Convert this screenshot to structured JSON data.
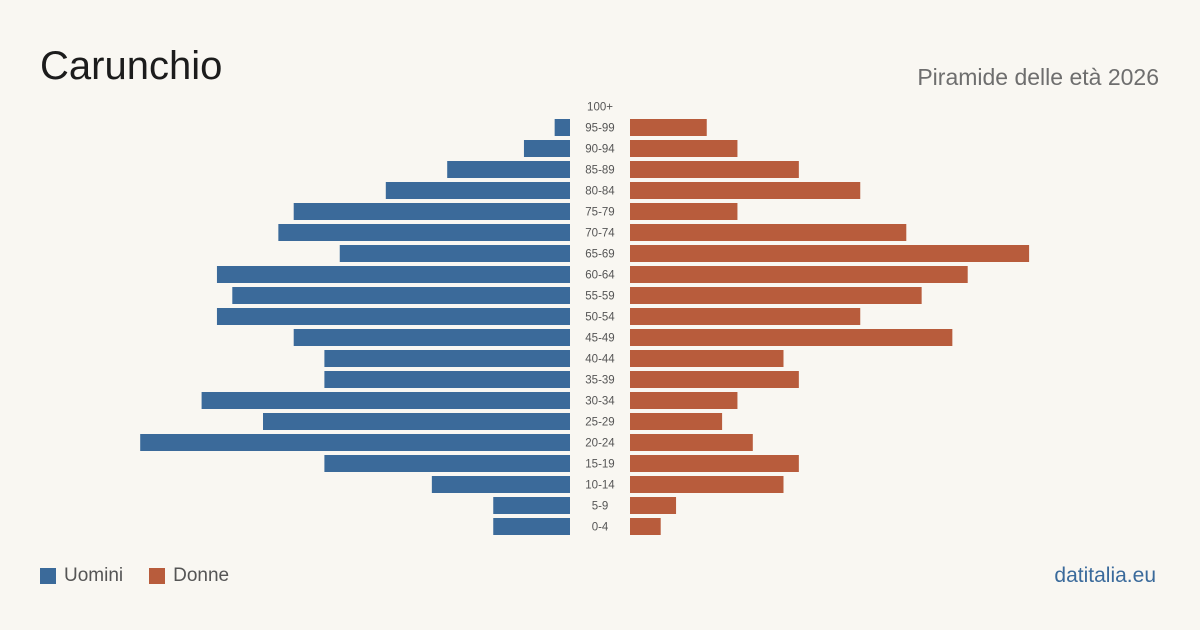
{
  "title": "Carunchio",
  "subtitle": "Piramide delle età 2026",
  "brand": "datitalia.eu",
  "colors": {
    "male": "#3b6a9a",
    "female": "#b85c3c",
    "background": "#f9f7f2"
  },
  "legend": {
    "male_label": "Uomini",
    "female_label": "Donne"
  },
  "chart_data": {
    "type": "bar",
    "orientation": "horizontal-diverging",
    "categories": [
      "100+",
      "95-99",
      "90-94",
      "85-89",
      "80-84",
      "75-79",
      "70-74",
      "65-69",
      "60-64",
      "55-59",
      "50-54",
      "45-49",
      "40-44",
      "35-39",
      "30-34",
      "25-29",
      "20-24",
      "15-19",
      "10-14",
      "5-9",
      "0-4"
    ],
    "series": [
      {
        "name": "Uomini",
        "values": [
          0,
          1,
          3,
          8,
          12,
          18,
          19,
          15,
          23,
          22,
          23,
          18,
          16,
          16,
          24,
          20,
          28,
          16,
          9,
          5,
          5
        ]
      },
      {
        "name": "Donne",
        "values": [
          0,
          5,
          7,
          11,
          15,
          7,
          18,
          26,
          22,
          19,
          15,
          21,
          10,
          11,
          7,
          6,
          8,
          11,
          10,
          3,
          2
        ]
      }
    ],
    "legend_position": "bottom-left",
    "grid": false
  }
}
